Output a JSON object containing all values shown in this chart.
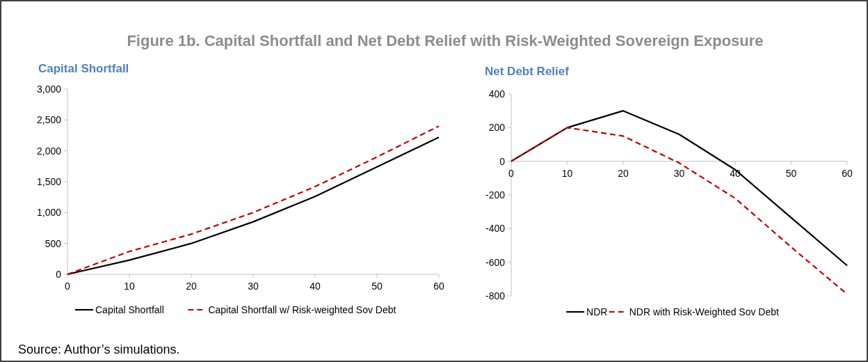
{
  "chart_data": [
    {
      "type": "line",
      "title": "Capital Shortfall",
      "x": [
        0,
        10,
        20,
        30,
        40,
        50,
        60
      ],
      "xlim": [
        0,
        60
      ],
      "xticks": [
        0,
        10,
        20,
        30,
        40,
        50,
        60
      ],
      "ylim": [
        0,
        3000
      ],
      "yticks": [
        {
          "value": 0,
          "label": "0"
        },
        {
          "value": 500,
          "label": "500"
        },
        {
          "value": 1000,
          "label": "1,000"
        },
        {
          "value": 1500,
          "label": "1,500"
        },
        {
          "value": 2000,
          "label": "2,000"
        },
        {
          "value": 2500,
          "label": "2,500"
        },
        {
          "value": 3000,
          "label": "3,000"
        }
      ],
      "legend": "bottom",
      "annotations": [
        "Figure 1b. Capital Shortfall and Net Debt Relief with Risk-Weighted Sovereign Exposure",
        "Source: Author’s simulations."
      ],
      "series": [
        {
          "name": "Capital Shortfall",
          "color": "#000000",
          "line_style": "solid",
          "values": [
            0,
            230,
            500,
            850,
            1260,
            1740,
            2220
          ]
        },
        {
          "name": "Capital Shortfall w/ Risk-weighted Sov Debt",
          "color": "#c00000",
          "line_style": "dashed",
          "values": [
            0,
            370,
            650,
            1000,
            1420,
            1900,
            2400
          ]
        }
      ]
    },
    {
      "type": "line",
      "title": "Net Debt Relief",
      "x": [
        0,
        10,
        20,
        30,
        40,
        50,
        60
      ],
      "xlim": [
        0,
        60
      ],
      "xticks": [
        0,
        10,
        20,
        30,
        40,
        50,
        60
      ],
      "ylim": [
        -800,
        400
      ],
      "yticks": [
        -800,
        -600,
        -400,
        -200,
        0,
        200,
        400
      ],
      "legend": "bottom",
      "series": [
        {
          "name": "NDR",
          "color": "#000000",
          "line_style": "solid",
          "values": [
            0,
            200,
            300,
            160,
            -50,
            -335,
            -620
          ]
        },
        {
          "name": "NDR with Risk-Weighted Sov Debt",
          "color": "#c00000",
          "line_style": "dashed",
          "values": [
            0,
            200,
            150,
            -10,
            -220,
            -510,
            -790
          ]
        }
      ]
    }
  ]
}
